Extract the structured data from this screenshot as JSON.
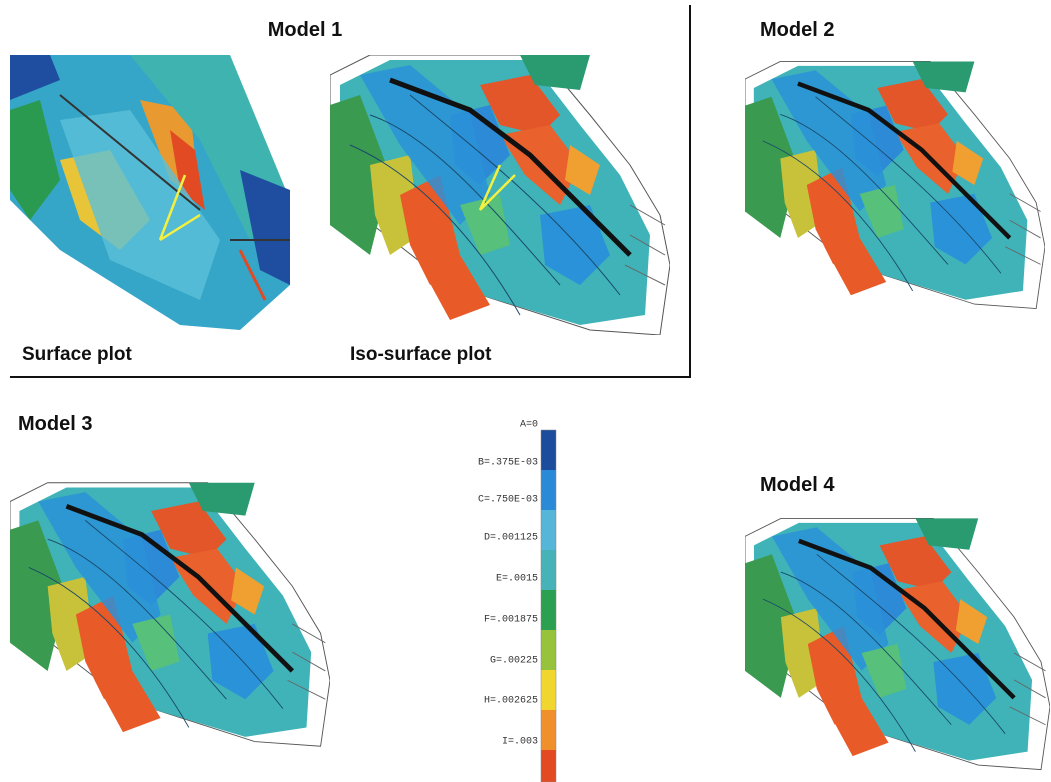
{
  "titles": [
    "Model 1",
    "Model 2",
    "Model 3",
    "Model 4"
  ],
  "captions": [
    "Surface plot",
    "Iso-surface plot"
  ],
  "legend": {
    "labels": [
      "A=0",
      "B=.375E-03",
      "C=.750E-03",
      "D=.001125",
      "E=.0015",
      "F=.001875",
      "G=.00225",
      "H=.002625",
      "I=.003"
    ]
  }
}
